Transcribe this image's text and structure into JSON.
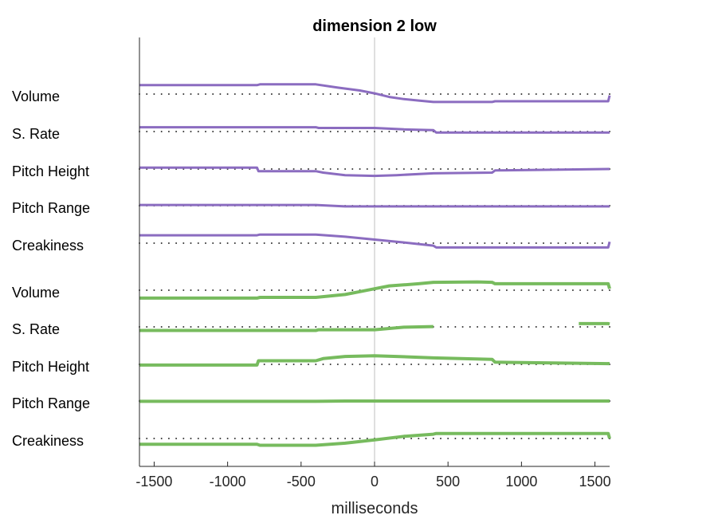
{
  "chart_data": {
    "type": "line",
    "title": "dimension  2 low",
    "xlabel": "milliseconds",
    "xlim": [
      -1600,
      1600
    ],
    "xticks": [
      -1500,
      -1000,
      -500,
      0,
      500,
      1000,
      1500
    ],
    "tick_labels": [
      "-1500",
      "-1000",
      "-500",
      "0",
      "500",
      "1000",
      "1500"
    ],
    "vertical_reference_line": 0,
    "grid": false,
    "colors": {
      "purple": "#8B6CC0",
      "green": "#77BB5E",
      "dots": "#333333",
      "zero_line": "#bfbfbf",
      "axis": "#262626"
    },
    "rows": [
      {
        "label": "Volume",
        "color": "purple",
        "baseline": 0,
        "points": [
          [
            -1600,
            1.25
          ],
          [
            -800,
            1.25
          ],
          [
            -780,
            1.35
          ],
          [
            -400,
            1.35
          ],
          [
            -250,
            0.9
          ],
          [
            -100,
            0.5
          ],
          [
            0,
            0.1
          ],
          [
            100,
            -0.4
          ],
          [
            200,
            -0.7
          ],
          [
            300,
            -0.9
          ],
          [
            400,
            -1.1
          ],
          [
            600,
            -1.1
          ],
          [
            800,
            -1.1
          ],
          [
            820,
            -1.0
          ],
          [
            1590,
            -1.0
          ],
          [
            1600,
            -0.2
          ]
        ]
      },
      {
        "label": "S. Rate",
        "color": "purple",
        "baseline": 0,
        "points": [
          [
            -1600,
            0.6
          ],
          [
            -400,
            0.6
          ],
          [
            -380,
            0.5
          ],
          [
            0,
            0.5
          ],
          [
            200,
            0.3
          ],
          [
            400,
            0.2
          ],
          [
            420,
            -0.15
          ],
          [
            1600,
            -0.15
          ]
        ]
      },
      {
        "label": "Pitch Height",
        "color": "purple",
        "baseline": 0,
        "points": [
          [
            -1600,
            0.2
          ],
          [
            -800,
            0.2
          ],
          [
            -790,
            -0.3
          ],
          [
            -400,
            -0.3
          ],
          [
            -350,
            -0.5
          ],
          [
            -200,
            -0.85
          ],
          [
            0,
            -0.95
          ],
          [
            150,
            -0.85
          ],
          [
            400,
            -0.6
          ],
          [
            800,
            -0.5
          ],
          [
            820,
            -0.2
          ],
          [
            1600,
            0.0
          ]
        ]
      },
      {
        "label": "Pitch Range",
        "color": "purple",
        "baseline": 0,
        "points": [
          [
            -1600,
            0.1
          ],
          [
            -400,
            0.1
          ],
          [
            -200,
            -0.1
          ],
          [
            1600,
            -0.1
          ]
        ]
      },
      {
        "label": "Creakiness",
        "color": "purple",
        "baseline": 0,
        "points": [
          [
            -1600,
            1.1
          ],
          [
            -800,
            1.1
          ],
          [
            -780,
            1.2
          ],
          [
            -400,
            1.2
          ],
          [
            -200,
            0.9
          ],
          [
            0,
            0.5
          ],
          [
            200,
            0.1
          ],
          [
            400,
            -0.35
          ],
          [
            420,
            -0.6
          ],
          [
            1590,
            -0.6
          ],
          [
            1600,
            0.2
          ]
        ]
      },
      {
        "label": "Volume",
        "color": "green",
        "baseline": 0,
        "points": [
          [
            -1600,
            -1.1
          ],
          [
            -800,
            -1.1
          ],
          [
            -780,
            -1.0
          ],
          [
            -400,
            -1.0
          ],
          [
            -200,
            -0.6
          ],
          [
            -100,
            -0.2
          ],
          [
            0,
            0.2
          ],
          [
            100,
            0.6
          ],
          [
            200,
            0.75
          ],
          [
            300,
            0.9
          ],
          [
            400,
            1.1
          ],
          [
            700,
            1.15
          ],
          [
            800,
            1.1
          ],
          [
            820,
            0.9
          ],
          [
            1590,
            0.9
          ],
          [
            1600,
            0.2
          ]
        ]
      },
      {
        "label": "S. Rate",
        "color": "green",
        "baseline": 0,
        "points_segments": [
          [
            [
              -1600,
              -0.5
            ],
            [
              -400,
              -0.5
            ],
            [
              -380,
              -0.4
            ],
            [
              0,
              -0.4
            ],
            [
              200,
              -0.05
            ],
            [
              400,
              0.05
            ]
          ],
          [
            [
              1390,
              0.45
            ],
            [
              1590,
              0.45
            ],
            [
              1600,
              0.4
            ]
          ]
        ]
      },
      {
        "label": "Pitch Height",
        "color": "green",
        "baseline": 0,
        "points": [
          [
            -1600,
            -0.1
          ],
          [
            -800,
            -0.1
          ],
          [
            -790,
            0.5
          ],
          [
            -400,
            0.5
          ],
          [
            -350,
            0.8
          ],
          [
            -200,
            1.1
          ],
          [
            0,
            1.2
          ],
          [
            150,
            1.1
          ],
          [
            400,
            0.9
          ],
          [
            800,
            0.7
          ],
          [
            820,
            0.3
          ],
          [
            1600,
            0.1
          ]
        ]
      },
      {
        "label": "Pitch Range",
        "color": "green",
        "baseline": 0,
        "points": [
          [
            -1600,
            -0.05
          ],
          [
            -400,
            -0.05
          ],
          [
            -200,
            0.0
          ],
          [
            1600,
            0.0
          ]
        ]
      },
      {
        "label": "Creakiness",
        "color": "green",
        "baseline": 0,
        "points": [
          [
            -1600,
            -0.8
          ],
          [
            -800,
            -0.8
          ],
          [
            -780,
            -0.95
          ],
          [
            -400,
            -0.95
          ],
          [
            -200,
            -0.65
          ],
          [
            0,
            -0.2
          ],
          [
            200,
            0.3
          ],
          [
            400,
            0.6
          ],
          [
            420,
            0.7
          ],
          [
            1590,
            0.7
          ],
          [
            1600,
            0.0
          ]
        ]
      }
    ]
  }
}
